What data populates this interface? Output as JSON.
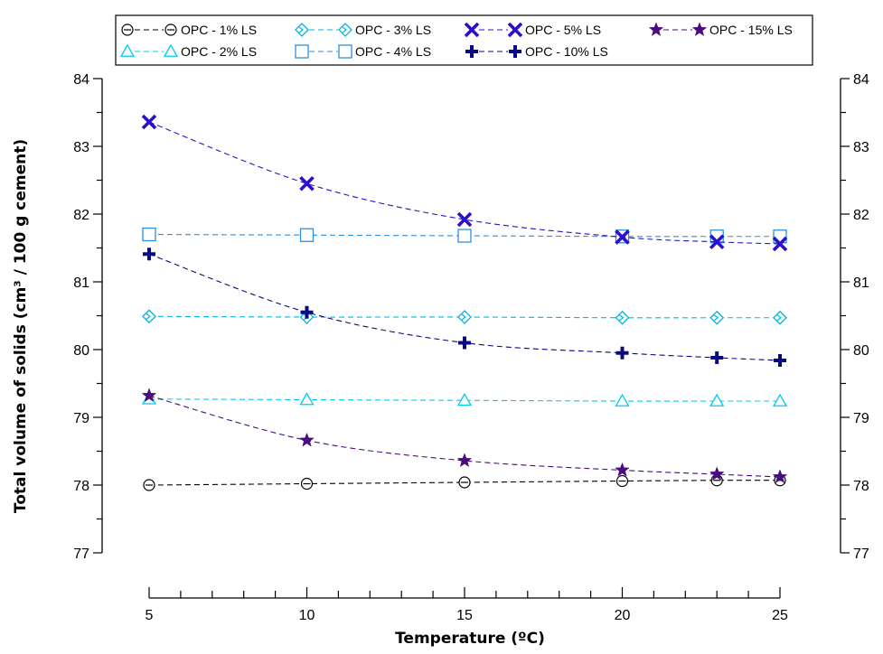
{
  "chart_data": {
    "type": "line",
    "xlabel": "Temperature (ºC)",
    "ylabel": "Total volume of solids (cm³ / 100 g cement)",
    "xlim": [
      5,
      25
    ],
    "ylim": [
      77,
      84
    ],
    "x_ticks": [
      5,
      10,
      15,
      20,
      25
    ],
    "x_minor_step": 1,
    "y_ticks": [
      77,
      78,
      79,
      80,
      81,
      82,
      83,
      84
    ],
    "y_minor_step": 0.5,
    "grid": false,
    "legend_position": "top",
    "x": [
      5,
      10,
      15,
      20,
      23,
      25
    ],
    "series": [
      {
        "name": "OPC - 1% LS",
        "marker": "circle-minus",
        "color": "#000000",
        "filled": false,
        "values": [
          78.0,
          78.02,
          78.04,
          78.06,
          78.07,
          78.07
        ]
      },
      {
        "name": "OPC - 2% LS",
        "marker": "triangle",
        "color": "#00ccee",
        "filled": false,
        "values": [
          79.27,
          79.26,
          79.25,
          79.24,
          79.24,
          79.24
        ]
      },
      {
        "name": "OPC - 3% LS",
        "marker": "diamond-arrow",
        "color": "#00b4e0",
        "filled": false,
        "values": [
          80.49,
          80.48,
          80.48,
          80.47,
          80.47,
          80.47
        ]
      },
      {
        "name": "OPC - 4% LS",
        "marker": "square",
        "color": "#2c8ee0",
        "filled": false,
        "values": [
          81.7,
          81.69,
          81.68,
          81.67,
          81.67,
          81.67
        ]
      },
      {
        "name": "OPC - 5% LS",
        "marker": "x",
        "color": "#2a10c8",
        "filled": true,
        "values": [
          83.36,
          82.45,
          81.92,
          81.66,
          81.59,
          81.56
        ]
      },
      {
        "name": "OPC - 10% LS",
        "marker": "plus",
        "color": "#0a0a80",
        "filled": true,
        "values": [
          81.41,
          80.55,
          80.1,
          79.95,
          79.88,
          79.84
        ]
      },
      {
        "name": "OPC - 15% LS",
        "marker": "star",
        "color": "#4a0a80",
        "filled": true,
        "values": [
          79.32,
          78.66,
          78.36,
          78.22,
          78.16,
          78.12
        ]
      }
    ]
  }
}
